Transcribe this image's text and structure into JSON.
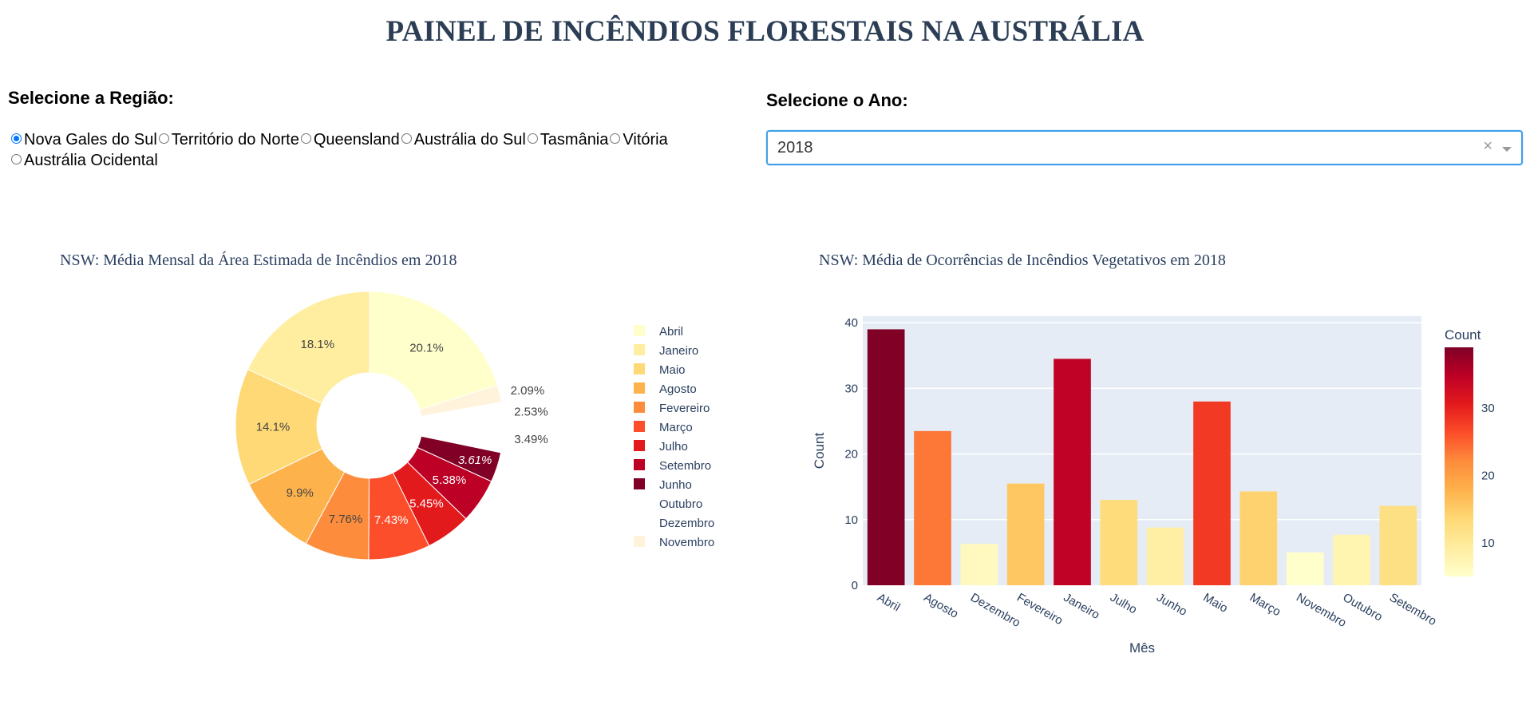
{
  "page": {
    "title": "PAINEL DE INCÊNDIOS FLORESTAIS NA AUSTRÁLIA"
  },
  "region_selector": {
    "label": "Selecione a Região:",
    "options": [
      "Nova Gales do Sul",
      "Território do Norte",
      "Queensland",
      "Austrália do Sul",
      "Tasmânia",
      "Vitória",
      "Austrália Ocidental"
    ],
    "selected": "Nova Gales do Sul"
  },
  "year_selector": {
    "label": "Selecione o Ano:",
    "value": "2018",
    "clear_icon": "×",
    "arrow_icon": "chevron-down-icon"
  },
  "colors": {
    "title": "#2c3e55",
    "plot_bg": "#e5ecf6",
    "axis_text": "#2a3f5f",
    "selected_radio": "#0075ff"
  },
  "pie_chart": {
    "title": "NSW: Média Mensal da Área Estimada de Incêndios em 2018"
  },
  "bar_chart": {
    "title": "NSW: Média de Ocorrências de Incêndios Vegetativos em 2018"
  },
  "chart_data": [
    {
      "type": "pie",
      "hole": true,
      "title": "NSW: Média Mensal da Área Estimada de Incêndios em 2018",
      "slices": [
        {
          "label": "Abril",
          "percent": 20.1,
          "text": "20.1%",
          "color": "#ffffcc"
        },
        {
          "label": "Novembro",
          "percent": 2.09,
          "text": "2.09%",
          "color": "#fff3dc"
        },
        {
          "label": "Dezembro",
          "percent": 2.53,
          "text": "2.53%",
          "color": "#ffffff"
        },
        {
          "label": "Outubro",
          "percent": 3.49,
          "text": "3.49%",
          "color": "#ffffff"
        },
        {
          "label": "Junho",
          "percent": 3.61,
          "text": "3.61%",
          "color": "#800026"
        },
        {
          "label": "Setembro",
          "percent": 5.38,
          "text": "5.38%",
          "color": "#bd0026"
        },
        {
          "label": "Julho",
          "percent": 5.45,
          "text": "5.45%",
          "color": "#e31a1c"
        },
        {
          "label": "Março",
          "percent": 7.43,
          "text": "7.43%",
          "color": "#fc4e2a"
        },
        {
          "label": "Fevereiro",
          "percent": 7.76,
          "text": "7.76%",
          "color": "#fd8d3c"
        },
        {
          "label": "Agosto",
          "percent": 9.9,
          "text": "9.9%",
          "color": "#feb24c"
        },
        {
          "label": "Maio",
          "percent": 14.1,
          "text": "14.1%",
          "color": "#fed976"
        },
        {
          "label": "Janeiro",
          "percent": 18.1,
          "text": "18.1%",
          "color": "#ffeda0"
        }
      ],
      "legend": [
        {
          "label": "Abril",
          "color": "#ffffcc"
        },
        {
          "label": "Janeiro",
          "color": "#ffeda0"
        },
        {
          "label": "Maio",
          "color": "#fed976"
        },
        {
          "label": "Agosto",
          "color": "#feb24c"
        },
        {
          "label": "Fevereiro",
          "color": "#fd8d3c"
        },
        {
          "label": "Março",
          "color": "#fc4e2a"
        },
        {
          "label": "Julho",
          "color": "#e31a1c"
        },
        {
          "label": "Setembro",
          "color": "#bd0026"
        },
        {
          "label": "Junho",
          "color": "#800026"
        },
        {
          "label": "Outubro",
          "color": "#ffffff"
        },
        {
          "label": "Dezembro",
          "color": "#ffffff"
        },
        {
          "label": "Novembro",
          "color": "#fff3dc"
        }
      ],
      "legend_position": "right"
    },
    {
      "type": "bar",
      "title": "NSW: Média de Ocorrências de Incêndios Vegetativos em 2018",
      "categories": [
        "Abril",
        "Agosto",
        "Dezembro",
        "Fevereiro",
        "Janeiro",
        "Julho",
        "Junho",
        "Maio",
        "Março",
        "Novembro",
        "Outubro",
        "Setembro"
      ],
      "values": [
        39.0,
        23.5,
        6.3,
        15.5,
        34.5,
        13.0,
        8.8,
        28.0,
        14.3,
        5.0,
        7.7,
        12.1
      ],
      "xlabel": "Mês",
      "ylabel": "Count",
      "ylim": [
        0,
        41
      ],
      "yticks": [
        0,
        10,
        20,
        30,
        40
      ],
      "grid": true,
      "colorbar": {
        "title": "Count",
        "range": [
          5.0,
          39.0
        ],
        "ticks": [
          10,
          20,
          30
        ],
        "colorscale": "YlOrRd"
      }
    }
  ]
}
